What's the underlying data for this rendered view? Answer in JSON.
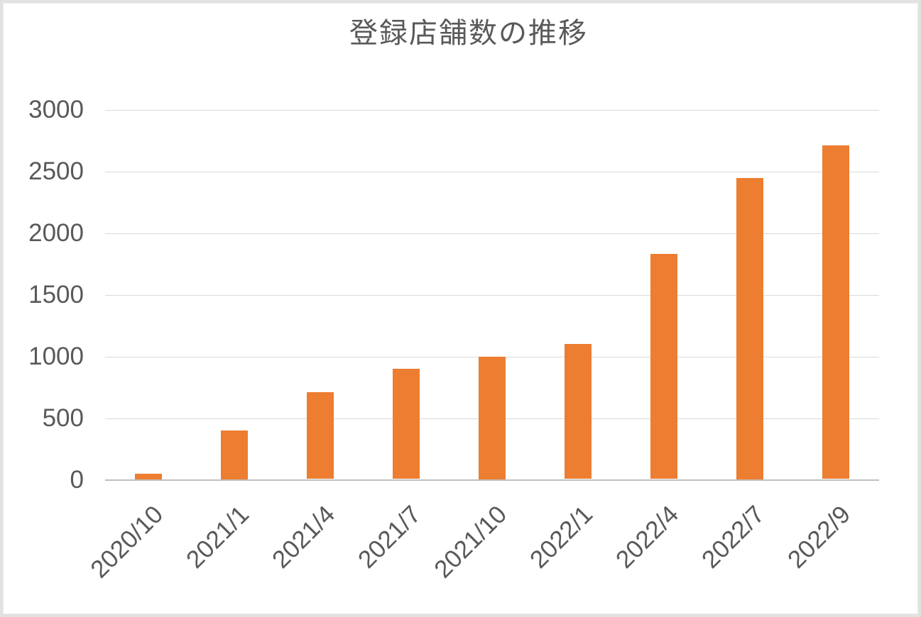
{
  "chart_data": {
    "type": "bar",
    "title": "登録店舗数の推移",
    "categories": [
      "2020/10",
      "2021/1",
      "2021/4",
      "2021/7",
      "2021/10",
      "2022/1",
      "2022/4",
      "2022/7",
      "2022/9"
    ],
    "values": [
      50,
      400,
      710,
      900,
      1000,
      1100,
      1830,
      2450,
      2710
    ],
    "xlabel": "",
    "ylabel": "",
    "ylim": [
      0,
      3000
    ],
    "yticks": [
      0,
      500,
      1000,
      1500,
      2000,
      2500,
      3000
    ],
    "grid": true,
    "legend": false,
    "bar_color": "#ED7D31",
    "gridline_color": "#D9D9D9",
    "axis_line_color": "#BFBFBF",
    "text_color": "#595959",
    "background_color": "#FFFFFF",
    "border_color": "#E2E2E2"
  }
}
